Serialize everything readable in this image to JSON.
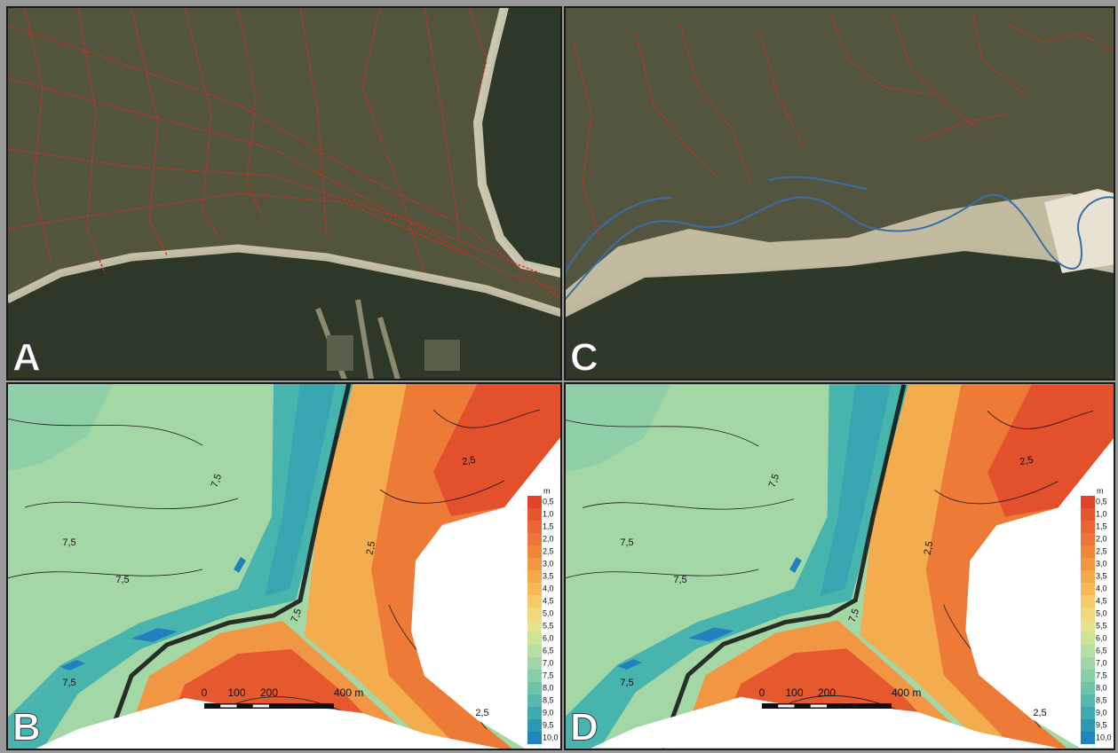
{
  "panels": [
    {
      "label": "A"
    },
    {
      "label": "B",
      "contour_labels": [
        "7,5",
        "7,5",
        "7,5",
        "7,5",
        "7,5",
        "2,5",
        "2,5",
        "2,5"
      ]
    },
    {
      "label": "C"
    },
    {
      "label": "D",
      "contour_labels": [
        "7,5",
        "7,5",
        "7,5",
        "7,5",
        "7,5",
        "2,5",
        "2,5",
        "2,5"
      ]
    }
  ],
  "legend": {
    "unit": "m",
    "labels": [
      "0,5",
      "1,0",
      "1,5",
      "2,0",
      "2,5",
      "3,0",
      "3,5",
      "4,0",
      "4,5",
      "5,0",
      "5,5",
      "6,0",
      "6,5",
      "7,0",
      "7,5",
      "8,0",
      "8,5",
      "9,0",
      "9,5",
      "10,0"
    ],
    "colors": [
      "#e0452a",
      "#e5552e",
      "#ea6532",
      "#ee7537",
      "#f1853c",
      "#f39642",
      "#f5a84a",
      "#f6ba55",
      "#f4cb66",
      "#efd97a",
      "#e4e28f",
      "#cde39a",
      "#b6dea2",
      "#9fd6a6",
      "#88cea8",
      "#6ec4aa",
      "#55b8ac",
      "#3eaaae",
      "#2b98b4",
      "#1f84c0"
    ]
  },
  "scale_bar": {
    "labels": [
      "0",
      "100",
      "200",
      "400 m"
    ]
  }
}
